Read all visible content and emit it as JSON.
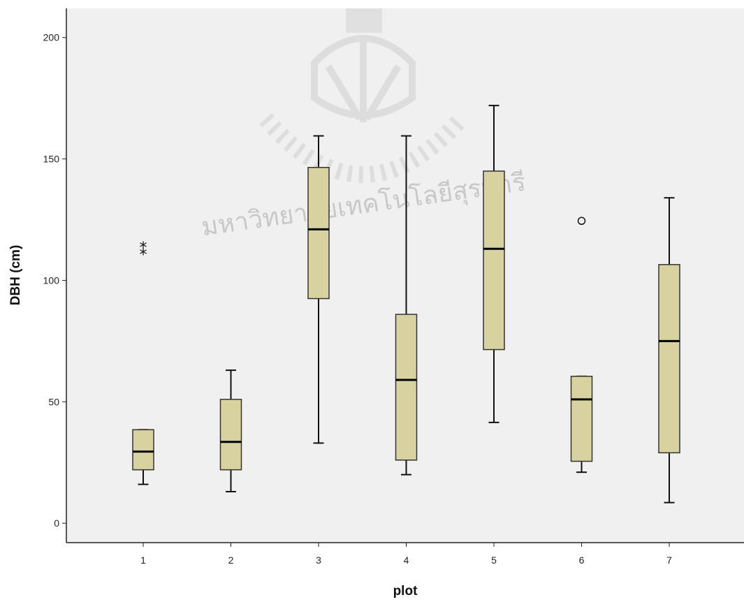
{
  "watermark": {
    "text": "มหาวิทยาลัยเทคโนโลยีสุรนารี",
    "color": "#c8c8c8"
  },
  "chart_data": {
    "type": "boxplot",
    "xlabel": "plot",
    "ylabel": "DBH (cm)",
    "ylim": [
      -8,
      212
    ],
    "yticks": [
      0,
      50,
      100,
      150,
      200
    ],
    "categories": [
      "1",
      "2",
      "3",
      "4",
      "5",
      "6",
      "7"
    ],
    "boxes": [
      {
        "category": "1",
        "whisker_low": 16,
        "q1": 22,
        "median": 29.5,
        "q3": 38.5,
        "whisker_high": 38.5,
        "outliers": [],
        "extremes": [
          111,
          114
        ]
      },
      {
        "category": "2",
        "whisker_low": 13,
        "q1": 22,
        "median": 33.5,
        "q3": 51,
        "whisker_high": 63,
        "outliers": [],
        "extremes": []
      },
      {
        "category": "3",
        "whisker_low": 33,
        "q1": 92.5,
        "median": 121,
        "q3": 146.5,
        "whisker_high": 159.5,
        "outliers": [],
        "extremes": []
      },
      {
        "category": "4",
        "whisker_low": 20,
        "q1": 26,
        "median": 59,
        "q3": 86,
        "whisker_high": 159.5,
        "outliers": [],
        "extremes": []
      },
      {
        "category": "5",
        "whisker_low": 41.5,
        "q1": 71.5,
        "median": 113,
        "q3": 145,
        "whisker_high": 172,
        "outliers": [],
        "extremes": []
      },
      {
        "category": "6",
        "whisker_low": 21,
        "q1": 25.5,
        "median": 51,
        "q3": 60.5,
        "whisker_high": 60.5,
        "outliers": [
          124.5
        ],
        "extremes": []
      },
      {
        "category": "7",
        "whisker_low": 8.5,
        "q1": 29,
        "median": 75,
        "q3": 106.5,
        "whisker_high": 134,
        "outliers": [],
        "extremes": []
      }
    ],
    "colors": {
      "box_fill": "#d7d29f",
      "box_stroke": "#333333",
      "plot_background": "#f0f0f0",
      "axis": "#222222"
    },
    "grid": false,
    "legend": "none"
  }
}
